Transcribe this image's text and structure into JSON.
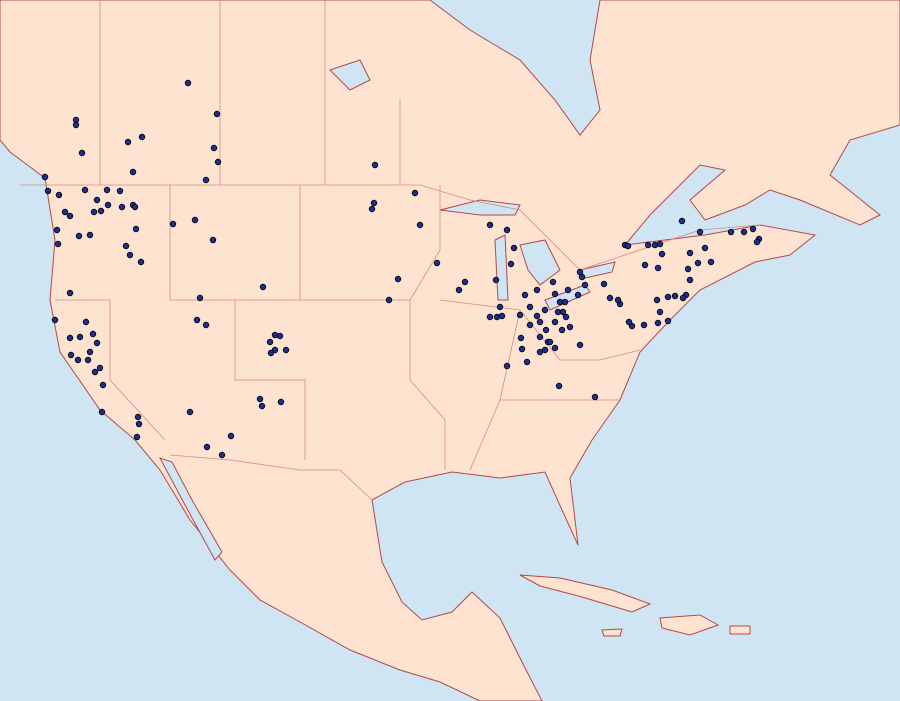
{
  "map": {
    "colors": {
      "water": "#cfe5f4",
      "land": "#fde3d0",
      "borders": "#b5484a",
      "highlight_land": "#f4a6a6",
      "observation_dot": "#1f2d8f"
    },
    "marker_icon": "circle-dot"
  }
}
